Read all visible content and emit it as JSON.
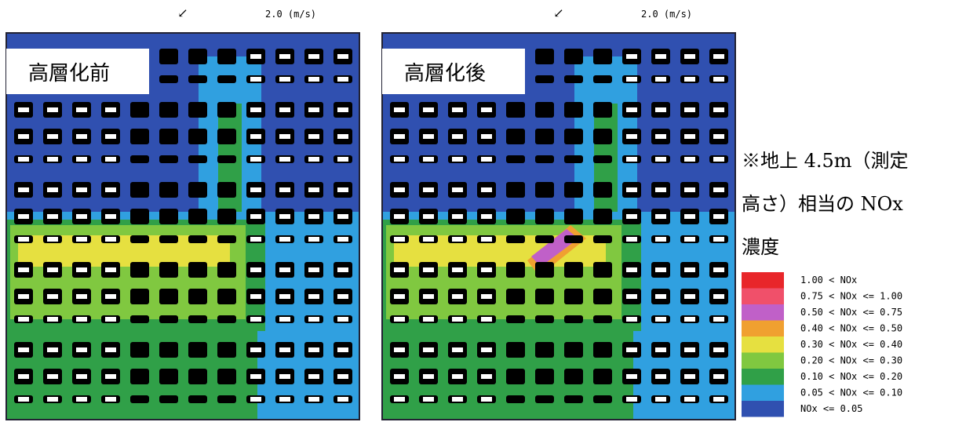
{
  "panels": [
    {
      "label": "高層化前",
      "wind_speed": "2.0 (m/s)"
    },
    {
      "label": "高層化後",
      "wind_speed": "2.0 (m/s)"
    }
  ],
  "note": {
    "lines": [
      "※地上 4.5m（測定",
      "高さ）相当の NOx",
      "濃度"
    ]
  },
  "legend": [
    {
      "label": "1.00 < NOx",
      "color": "#e8262a"
    },
    {
      "label": "0.75 < NOx <= 1.00",
      "color": "#f0506a"
    },
    {
      "label": "0.50 < NOx <= 0.75",
      "color": "#c060c8"
    },
    {
      "label": "0.40 < NOx <= 0.50",
      "color": "#f0a030"
    },
    {
      "label": "0.30 < NOx <= 0.40",
      "color": "#e6e040"
    },
    {
      "label": "0.20 < NOx <= 0.30",
      "color": "#80c840"
    },
    {
      "label": "0.10 < NOx <= 0.20",
      "color": "#30a048"
    },
    {
      "label": "0.05 < NOx <= 0.10",
      "color": "#30a0e0"
    },
    {
      "label": "NOx <= 0.05",
      "color": "#3050b0"
    }
  ]
}
